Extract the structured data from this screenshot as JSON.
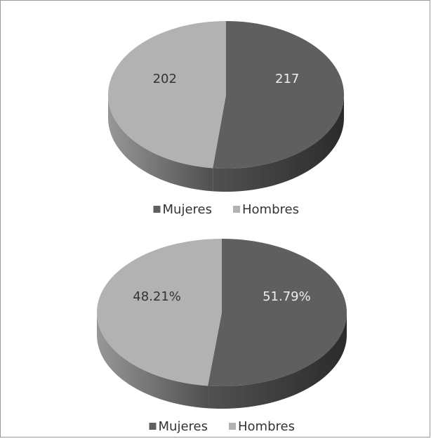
{
  "chart_data": [
    {
      "type": "pie",
      "categories": [
        "Mujeres",
        "Hombres"
      ],
      "values": [
        217,
        202
      ],
      "colors": [
        "#5f5f5f",
        "#b2b2b2"
      ],
      "legend": "bottom"
    },
    {
      "type": "pie",
      "categories": [
        "Mujeres",
        "Hombres"
      ],
      "values": [
        51.79,
        48.21
      ],
      "value_labels": [
        "51.79%",
        "48.21%"
      ],
      "colors": [
        "#5f5f5f",
        "#b2b2b2"
      ],
      "legend": "bottom"
    }
  ]
}
